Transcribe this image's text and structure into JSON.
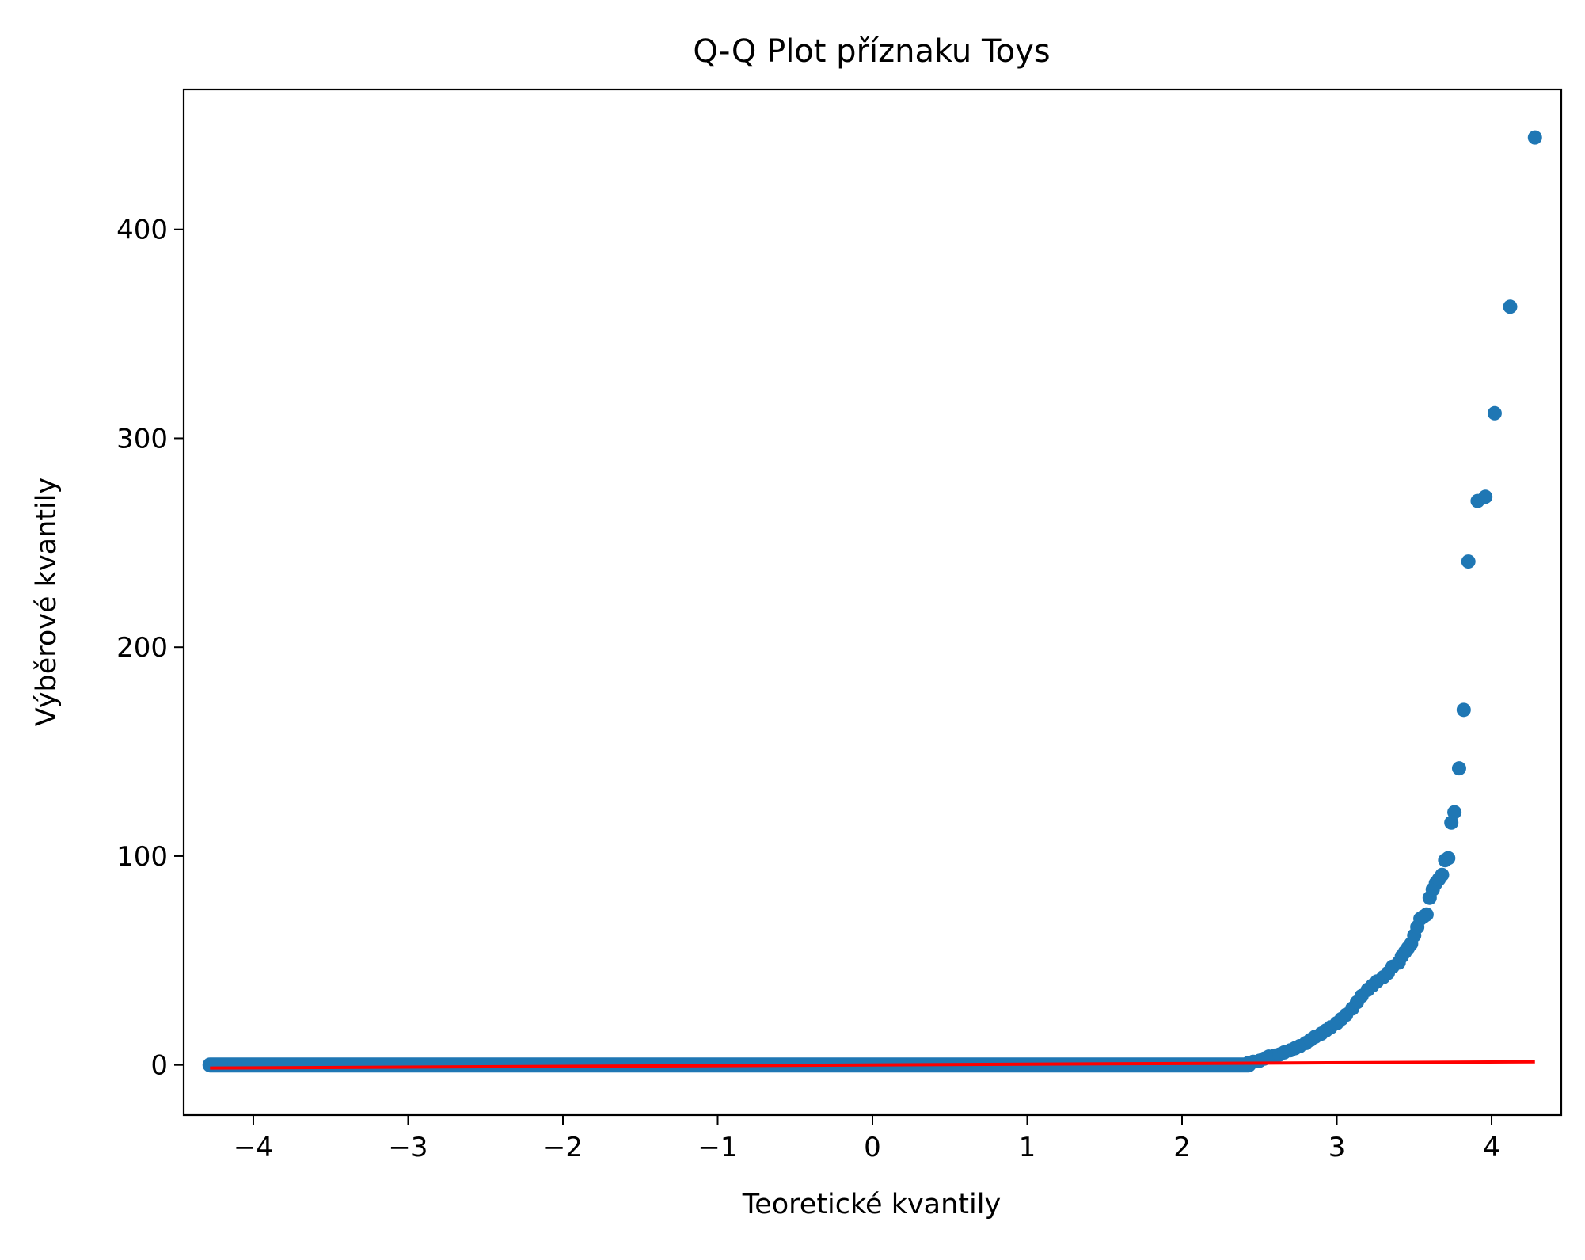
{
  "chart_data": {
    "type": "scatter",
    "title": "Q-Q Plot příznaku Toys",
    "xlabel": "Teoretické kvantily",
    "ylabel": "Výběrové kvantily",
    "xlim": [
      -4.45,
      4.45
    ],
    "ylim": [
      -24,
      467
    ],
    "xticks": [
      -4,
      -3,
      -2,
      -1,
      0,
      1,
      2,
      3,
      4
    ],
    "xtick_labels": [
      "−4",
      "−3",
      "−2",
      "−1",
      "0",
      "1",
      "2",
      "3",
      "4"
    ],
    "yticks": [
      0,
      100,
      200,
      300,
      400
    ],
    "ytick_labels": [
      "0",
      "100",
      "200",
      "300",
      "400"
    ],
    "grid": false,
    "colors": {
      "points": "#1f77b4",
      "fit_line": "#ff0000"
    },
    "series": [
      {
        "kind": "points",
        "x": [
          -4.28,
          -4.12,
          -4.03,
          -3.97,
          -3.92,
          -3.88,
          -3.84,
          -3.8,
          -3.7,
          -3.6,
          -3.4,
          -3.2,
          -3.0,
          -2.8,
          -2.5,
          -2.2,
          -2.0,
          -1.7,
          -1.5,
          -1.2,
          -1.0,
          -0.8,
          -0.5,
          -0.2,
          0.0,
          0.2,
          0.5,
          0.8,
          1.0,
          1.3,
          1.5,
          1.8,
          2.0,
          2.2,
          2.35,
          2.43,
          2.46,
          2.5,
          2.53,
          2.56,
          2.6,
          2.63,
          2.66,
          2.7,
          2.73,
          2.76,
          2.8,
          2.83,
          2.86,
          2.9,
          2.93,
          2.96,
          3.0,
          3.03,
          3.06,
          3.1,
          3.13,
          3.16,
          3.2,
          3.23,
          3.26,
          3.3,
          3.33,
          3.36,
          3.4,
          3.42,
          3.44,
          3.46,
          3.48,
          3.5,
          3.52,
          3.54,
          3.56,
          3.58,
          3.6,
          3.62,
          3.64,
          3.66,
          3.68,
          3.7,
          3.72,
          3.74,
          3.76,
          3.79,
          3.82,
          3.85,
          3.91,
          3.96,
          4.02,
          4.12,
          4.28
        ],
        "y": [
          0,
          0,
          0,
          0,
          0,
          0,
          0,
          0,
          0,
          0,
          0,
          0,
          0,
          0,
          0,
          0,
          0,
          0,
          0,
          0,
          0,
          0,
          0,
          0,
          0,
          0,
          0,
          0,
          0,
          0,
          0,
          0,
          0,
          0,
          0,
          1,
          1.5,
          2,
          3,
          4,
          4.5,
          5,
          6,
          7,
          8,
          9,
          10.5,
          12,
          13.5,
          15,
          16.5,
          18,
          20,
          22,
          24,
          27,
          30,
          33,
          36,
          38,
          40,
          42,
          44,
          47,
          49,
          52,
          54,
          56,
          58,
          62,
          66,
          70,
          71,
          72,
          80,
          84,
          87,
          89,
          91,
          98,
          99,
          116,
          121,
          142,
          170,
          241,
          270,
          272,
          312,
          363,
          444
        ]
      },
      {
        "kind": "fit-line",
        "x": [
          -4.28,
          4.28
        ],
        "y": [
          -1.5,
          1.5
        ]
      }
    ]
  }
}
